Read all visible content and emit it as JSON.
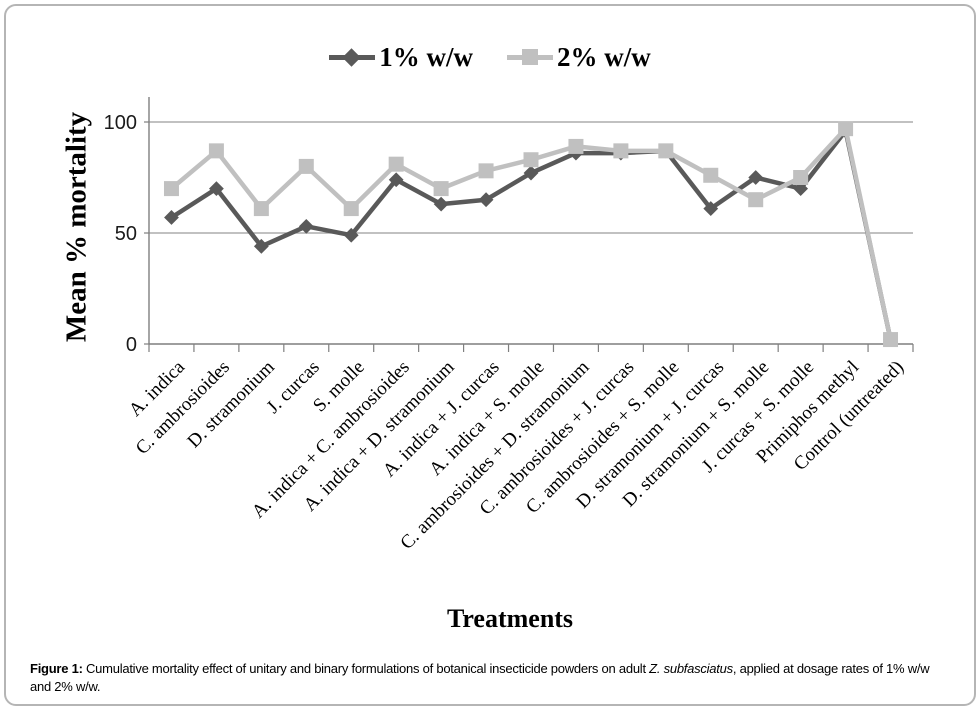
{
  "figure": {
    "border_color": "#b5b5b5"
  },
  "chart_data": {
    "type": "line",
    "title": "",
    "xlabel": "Treatments",
    "ylabel": "Mean % mortality",
    "ylim": [
      0,
      100
    ],
    "yticks": [
      0,
      50,
      100
    ],
    "grid": "horizontal gridlines at 50 and 100",
    "legend_position": "top-center",
    "axis_color": "#7f7f7f",
    "gridline_color": "#9c9c9c",
    "categories": [
      "A. indica",
      "C. ambrosioides",
      "D. stramonium",
      "J. curcas",
      "S. molle",
      "A. indica + C. ambrosioides",
      "A. indica + D. stramonium",
      "A. indica + J. curcas",
      "A. indica + S. molle",
      "C. ambrosioides + D. stramonium",
      "C. ambrosioides + J. curcas",
      "C. ambrosioides + S. molle",
      "D. stramonium + J. curcas",
      "D. stramonium + S. molle",
      "J. curcas + S. molle",
      "Primiphos methyl",
      "Control (untreated)"
    ],
    "series": [
      {
        "name": "1% w/w",
        "marker": "diamond",
        "color": "#595959",
        "values": [
          57,
          70,
          44,
          53,
          49,
          74,
          63,
          65,
          77,
          86,
          86,
          87,
          61,
          75,
          70,
          96,
          2
        ]
      },
      {
        "name": "2% w/w",
        "marker": "square",
        "color": "#c0c0c0",
        "values": [
          70,
          87,
          61,
          80,
          61,
          81,
          70,
          78,
          83,
          89,
          87,
          87,
          76,
          65,
          75,
          97,
          2
        ]
      }
    ]
  },
  "caption": {
    "label": "Figure 1:",
    "text1": " Cumulative mortality effect of unitary and binary formulations of botanical insecticide powders on adult ",
    "species": "Z. subfasciatus",
    "text2": ", applied at dosage rates of 1% w/w and 2% w/w."
  }
}
